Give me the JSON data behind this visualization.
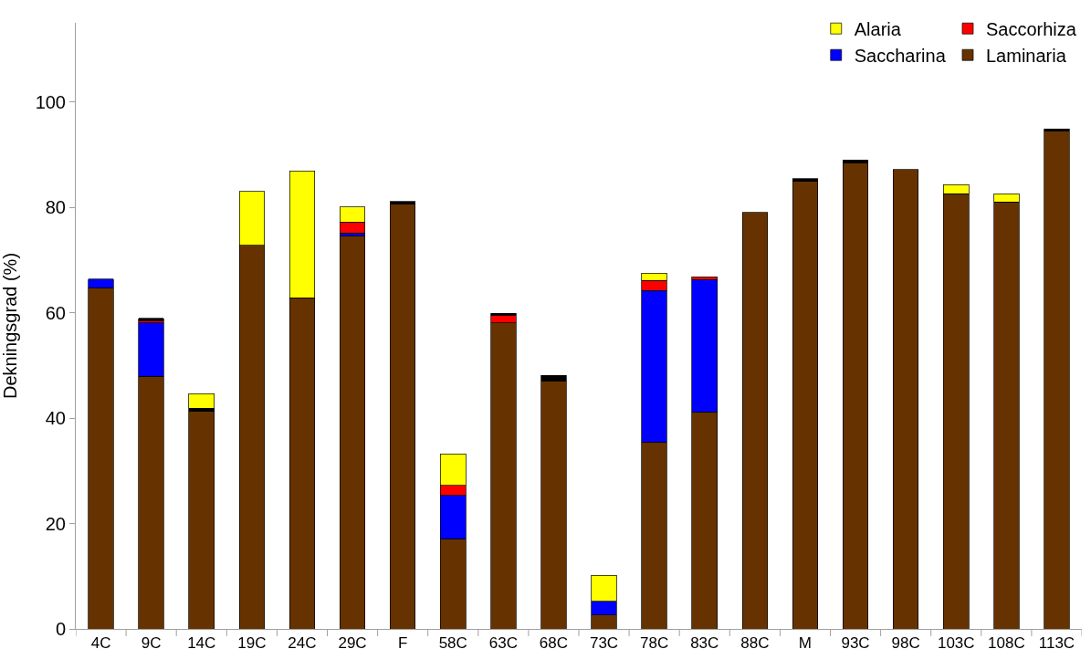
{
  "chart_data": {
    "type": "bar",
    "stacked": true,
    "ylabel": "Dekningsgrad (%)",
    "categories": [
      "4C",
      "9C",
      "14C",
      "19C",
      "24C",
      "29C",
      "F",
      "58C",
      "63C",
      "68C",
      "73C",
      "78C",
      "83C",
      "88C",
      "M",
      "93C",
      "98C",
      "103C",
      "108C",
      "113C"
    ],
    "series": [
      {
        "name": "Laminaria",
        "color": "#663300",
        "values": [
          64.7,
          47.9,
          41.3,
          72.8,
          62.8,
          74.6,
          80.6,
          17.1,
          58.1,
          47.1,
          2.6,
          35.5,
          41.2,
          79.0,
          84.9,
          88.5,
          87.2,
          82.6,
          81.0,
          94.4
        ]
      },
      {
        "name": "Saccharina",
        "color": "#0000ff",
        "values": [
          1.7,
          10.2,
          null,
          null,
          null,
          0.5,
          null,
          8.2,
          null,
          null,
          2.6,
          28.7,
          25.1,
          null,
          null,
          null,
          null,
          null,
          null,
          null
        ]
      },
      {
        "name": "Saccorhiza",
        "color": "#ff0000",
        "values": [
          null,
          0.3,
          null,
          null,
          null,
          2.1,
          null,
          1.9,
          1.4,
          null,
          null,
          1.9,
          0.5,
          null,
          null,
          null,
          null,
          null,
          null,
          null
        ]
      },
      {
        "color": "#000000",
        "values": [
          null,
          0.5,
          0.6,
          null,
          null,
          null,
          0.5,
          null,
          0.4,
          1.0,
          null,
          null,
          null,
          null,
          0.5,
          0.5,
          null,
          null,
          null,
          0.5
        ]
      },
      {
        "name": "Alaria",
        "color": "#ffff00",
        "values": [
          null,
          null,
          2.7,
          10.2,
          24.1,
          2.9,
          null,
          6.0,
          null,
          null,
          5.0,
          1.4,
          null,
          null,
          null,
          null,
          null,
          1.7,
          1.6,
          null
        ]
      }
    ],
    "ylim": [
      0,
      115
    ],
    "yticks": [
      0,
      20,
      40,
      60,
      80,
      100
    ],
    "grid": false,
    "legend": "top right"
  }
}
